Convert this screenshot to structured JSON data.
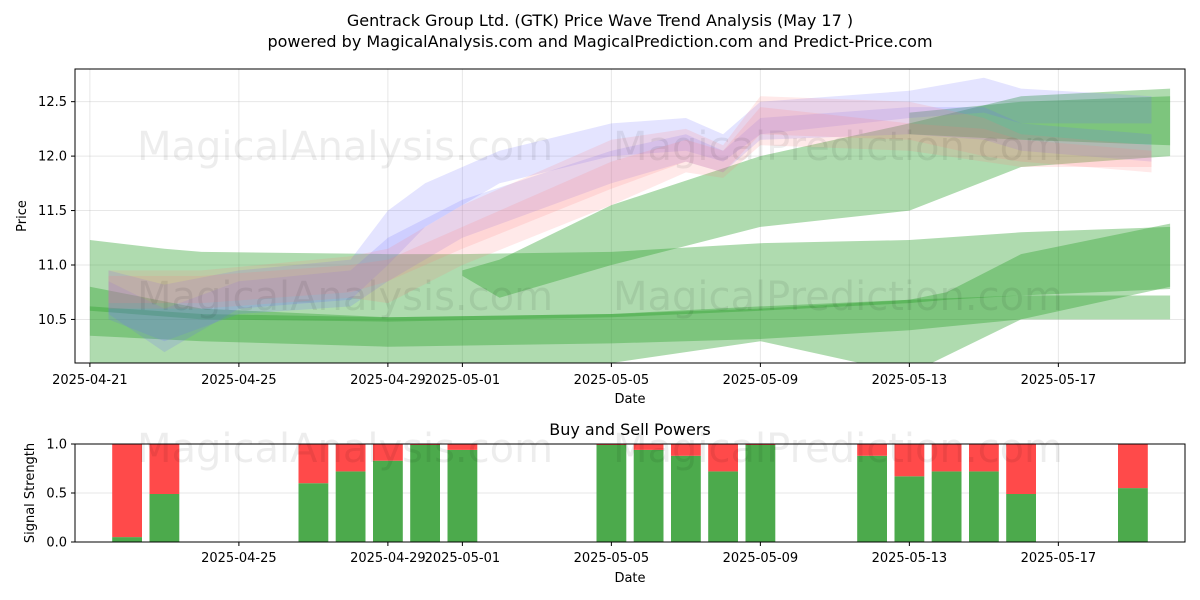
{
  "header": {
    "title": "Gentrack Group Ltd. (GTK) Price Wave Trend Analysis (May 17 )",
    "subtitle": "powered by MagicalAnalysis.com and MagicalPrediction.com and Predict-Price.com"
  },
  "watermarks": {
    "analysis": "MagicalAnalysis.com",
    "prediction": "MagicalPrediction.com"
  },
  "colors": {
    "green": "#2ca02c",
    "blue": "#6b6bff",
    "red": "#ff7b7b",
    "bar_buy": "#4caa4c",
    "bar_sell": "#ff4a4a"
  },
  "chart_data": [
    {
      "type": "area",
      "title": "",
      "xlabel": "Date",
      "ylabel": "Price",
      "x_ticks": [
        "2025-04-21",
        "2025-04-25",
        "2025-04-29",
        "2025-05-01",
        "2025-05-05",
        "2025-05-09",
        "2025-05-13",
        "2025-05-17"
      ],
      "x_tick_offsets": [
        0,
        4,
        8,
        10,
        14,
        18,
        22,
        26
      ],
      "xlim": [
        -0.4,
        29.4
      ],
      "y_ticks": [
        "10.5",
        "11.0",
        "11.5",
        "12.0",
        "12.5"
      ],
      "ylim": [
        10.1,
        12.8
      ],
      "grid": true,
      "bands": [
        {
          "color": "green",
          "opacity": 0.38,
          "upper": [
            [
              0,
              11.23
            ],
            [
              2,
              11.15
            ],
            [
              3,
              11.12
            ],
            [
              8,
              11.1
            ],
            [
              10,
              11.1
            ],
            [
              14,
              11.12
            ],
            [
              18,
              11.2
            ],
            [
              22,
              11.23
            ],
            [
              25,
              11.3
            ],
            [
              29,
              11.35
            ]
          ],
          "lower": [
            [
              0,
              10.0
            ],
            [
              2,
              10.0
            ],
            [
              8,
              10.0
            ],
            [
              10,
              10.0
            ],
            [
              14,
              10.1
            ],
            [
              18,
              10.3
            ],
            [
              22,
              10.0
            ],
            [
              25,
              10.5
            ],
            [
              29,
              10.8
            ]
          ]
        },
        {
          "color": "green",
          "opacity": 0.38,
          "upper": [
            [
              0,
              10.8
            ],
            [
              3,
              10.6
            ],
            [
              8,
              10.52
            ],
            [
              14,
              10.55
            ],
            [
              18,
              10.62
            ],
            [
              22,
              10.68
            ],
            [
              25,
              10.72
            ],
            [
              29,
              10.72
            ]
          ],
          "lower": [
            [
              0,
              10.35
            ],
            [
              3,
              10.3
            ],
            [
              8,
              10.25
            ],
            [
              14,
              10.28
            ],
            [
              18,
              10.32
            ],
            [
              22,
              10.4
            ],
            [
              25,
              10.5
            ],
            [
              29,
              10.5
            ]
          ]
        },
        {
          "color": "green",
          "opacity": 0.38,
          "upper": [
            [
              0,
              10.62
            ],
            [
              3,
              10.55
            ],
            [
              8,
              10.52
            ],
            [
              14,
              10.55
            ],
            [
              18,
              10.6
            ],
            [
              22,
              10.68
            ],
            [
              23,
              10.75
            ],
            [
              25,
              11.1
            ],
            [
              29,
              11.38
            ]
          ],
          "lower": [
            [
              0,
              10.58
            ],
            [
              3,
              10.5
            ],
            [
              8,
              10.48
            ],
            [
              14,
              10.52
            ],
            [
              18,
              10.58
            ],
            [
              22,
              10.65
            ],
            [
              23,
              10.68
            ],
            [
              25,
              10.72
            ],
            [
              29,
              10.78
            ]
          ]
        },
        {
          "color": "green",
          "opacity": 0.38,
          "upper": [
            [
              10,
              10.95
            ],
            [
              11,
              11.05
            ],
            [
              14,
              11.55
            ],
            [
              18,
              12.0
            ],
            [
              22,
              12.3
            ],
            [
              25,
              12.55
            ],
            [
              29,
              12.62
            ]
          ],
          "lower": [
            [
              10,
              10.9
            ],
            [
              11,
              10.7
            ],
            [
              14,
              11.0
            ],
            [
              18,
              11.35
            ],
            [
              22,
              11.5
            ],
            [
              25,
              11.9
            ],
            [
              29,
              12.0
            ]
          ]
        },
        {
          "color": "green",
          "opacity": 0.38,
          "upper": [
            [
              22,
              12.4
            ],
            [
              25,
              12.5
            ],
            [
              29,
              12.55
            ]
          ],
          "lower": [
            [
              22,
              12.2
            ],
            [
              25,
              12.15
            ],
            [
              29,
              12.1
            ]
          ]
        },
        {
          "color": "blue",
          "opacity": 0.18,
          "upper": [
            [
              0.5,
              10.95
            ],
            [
              2,
              10.82
            ],
            [
              4,
              10.95
            ],
            [
              7,
              11.05
            ],
            [
              8,
              11.5
            ],
            [
              9,
              11.75
            ],
            [
              11,
              12.05
            ],
            [
              14,
              12.3
            ],
            [
              16,
              12.35
            ],
            [
              17,
              12.2
            ],
            [
              18,
              12.5
            ],
            [
              22,
              12.6
            ],
            [
              24,
              12.72
            ],
            [
              25,
              12.62
            ],
            [
              28.5,
              12.55
            ]
          ],
          "lower": [
            [
              0.5,
              10.55
            ],
            [
              2,
              10.2
            ],
            [
              4,
              10.6
            ],
            [
              7,
              10.68
            ],
            [
              8,
              11.0
            ],
            [
              9,
              11.35
            ],
            [
              11,
              11.75
            ],
            [
              14,
              12.0
            ],
            [
              16,
              12.05
            ],
            [
              17,
              11.95
            ],
            [
              18,
              12.2
            ],
            [
              22,
              12.35
            ],
            [
              24,
              12.4
            ],
            [
              25,
              12.3
            ],
            [
              28.5,
              12.3
            ]
          ]
        },
        {
          "color": "blue",
          "opacity": 0.18,
          "upper": [
            [
              0.5,
              10.85
            ],
            [
              2,
              10.6
            ],
            [
              4,
              10.85
            ],
            [
              7,
              10.95
            ],
            [
              8,
              11.25
            ],
            [
              10,
              11.6
            ],
            [
              14,
              12.05
            ],
            [
              16,
              12.2
            ],
            [
              17,
              12.05
            ],
            [
              18,
              12.35
            ],
            [
              22,
              12.45
            ],
            [
              24,
              12.45
            ],
            [
              25,
              12.3
            ],
            [
              28.5,
              12.2
            ]
          ],
          "lower": [
            [
              0.5,
              10.5
            ],
            [
              2,
              10.3
            ],
            [
              4,
              10.55
            ],
            [
              7,
              10.62
            ],
            [
              8,
              10.85
            ],
            [
              10,
              11.25
            ],
            [
              14,
              11.75
            ],
            [
              16,
              11.95
            ],
            [
              17,
              11.85
            ],
            [
              18,
              12.15
            ],
            [
              22,
              12.2
            ],
            [
              24,
              12.15
            ],
            [
              25,
              12.05
            ],
            [
              28.5,
              11.95
            ]
          ]
        },
        {
          "color": "red",
          "opacity": 0.17,
          "upper": [
            [
              0.5,
              10.95
            ],
            [
              3,
              10.95
            ],
            [
              7,
              11.08
            ],
            [
              8,
              11.15
            ],
            [
              10,
              11.55
            ],
            [
              14,
              12.15
            ],
            [
              16,
              12.25
            ],
            [
              17,
              12.1
            ],
            [
              18,
              12.55
            ],
            [
              22,
              12.5
            ],
            [
              24,
              12.35
            ],
            [
              25,
              12.2
            ],
            [
              28.5,
              12.1
            ]
          ],
          "lower": [
            [
              0.5,
              10.65
            ],
            [
              3,
              10.65
            ],
            [
              7,
              10.75
            ],
            [
              8,
              10.85
            ],
            [
              10,
              11.15
            ],
            [
              14,
              11.7
            ],
            [
              16,
              11.95
            ],
            [
              17,
              11.85
            ],
            [
              18,
              12.2
            ],
            [
              22,
              12.15
            ],
            [
              24,
              12.0
            ],
            [
              25,
              11.95
            ],
            [
              28.5,
              11.85
            ]
          ]
        },
        {
          "color": "red",
          "opacity": 0.17,
          "upper": [
            [
              0.5,
              10.9
            ],
            [
              3,
              10.9
            ],
            [
              7,
              11.0
            ],
            [
              8,
              11.05
            ],
            [
              10,
              11.35
            ],
            [
              14,
              11.95
            ],
            [
              16,
              12.15
            ],
            [
              17,
              12.05
            ],
            [
              18,
              12.45
            ],
            [
              22,
              12.3
            ],
            [
              24,
              12.25
            ],
            [
              25,
              12.15
            ],
            [
              28.5,
              12.05
            ]
          ],
          "lower": [
            [
              0.5,
              10.6
            ],
            [
              3,
              10.6
            ],
            [
              7,
              10.7
            ],
            [
              8,
              10.65
            ],
            [
              10,
              11.0
            ],
            [
              14,
              11.55
            ],
            [
              16,
              11.85
            ],
            [
              17,
              11.8
            ],
            [
              18,
              12.1
            ],
            [
              22,
              12.05
            ],
            [
              24,
              11.95
            ],
            [
              25,
              11.9
            ],
            [
              28.5,
              11.9
            ]
          ]
        }
      ]
    },
    {
      "type": "bar",
      "stacked": true,
      "title": "Buy and Sell Powers",
      "xlabel": "Date",
      "ylabel": "Signal Strength",
      "x_ticks": [
        "2025-04-25",
        "2025-04-29",
        "2025-05-01",
        "2025-05-05",
        "2025-05-09",
        "2025-05-13",
        "2025-05-17"
      ],
      "x_tick_offsets": [
        4,
        8,
        10,
        14,
        18,
        22,
        26
      ],
      "xlim": [
        -0.4,
        29.4
      ],
      "y_ticks": [
        "0.0",
        "0.5",
        "1.0"
      ],
      "ylim": [
        0,
        1
      ],
      "grid": true,
      "x": [
        1,
        2,
        6,
        7,
        8,
        9,
        10,
        14,
        15,
        16,
        17,
        18,
        21,
        22,
        23,
        24,
        25,
        28
      ],
      "series": [
        {
          "name": "Buy",
          "color": "bar_buy",
          "values": [
            0.05,
            0.49,
            0.6,
            0.72,
            0.83,
            0.99,
            0.94,
            0.99,
            0.94,
            0.88,
            0.72,
            0.99,
            0.88,
            0.67,
            0.72,
            0.72,
            0.49,
            0.55
          ]
        },
        {
          "name": "Sell",
          "color": "bar_sell",
          "values": [
            0.95,
            0.51,
            0.4,
            0.28,
            0.17,
            0.01,
            0.06,
            0.01,
            0.06,
            0.12,
            0.28,
            0.01,
            0.12,
            0.33,
            0.28,
            0.28,
            0.51,
            0.45
          ]
        }
      ]
    }
  ]
}
